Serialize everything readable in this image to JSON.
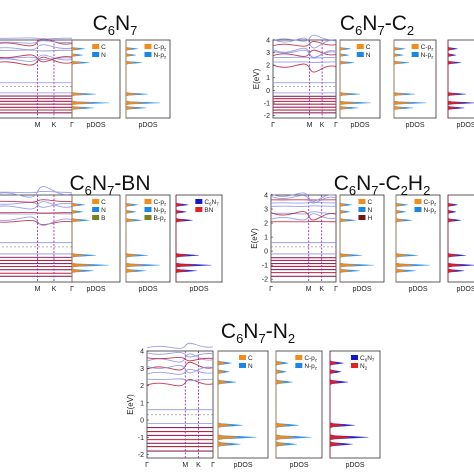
{
  "colors": {
    "band_valence": "#c0233e",
    "band_other": "#8f93e6",
    "band_flat": "#8d2a63",
    "kline": "#8a1fa8",
    "c_orange": "#f28c1c",
    "n_blue": "#1c86e6",
    "b_olive": "#77821e",
    "h_dark": "#7a1010",
    "total_navy": "#1414c8",
    "red": "#e62020"
  },
  "common": {
    "xticks": [
      "Γ",
      "M",
      "K",
      "Γ"
    ],
    "pdos_label": "pDOS",
    "ylabel": "E(eV)",
    "yticks": [
      "4",
      "3",
      "2",
      "1",
      "0",
      "-1",
      "-2"
    ]
  },
  "panels": [
    {
      "key": "c6n7",
      "title_parts": [
        {
          "t": "C",
          "sub": false
        },
        {
          "t": "6",
          "sub": true
        },
        {
          "t": "N",
          "sub": false
        },
        {
          "t": "7",
          "sub": true
        }
      ],
      "legends": [
        [
          {
            "label": "C",
            "color": "c_orange"
          },
          {
            "label": "N",
            "color": "n_blue"
          }
        ],
        [
          {
            "label": "C-p",
            "sub": "z",
            "color": "c_orange"
          },
          {
            "label": "N-p",
            "sub": "z",
            "color": "n_blue"
          }
        ]
      ]
    },
    {
      "key": "c6n7c2",
      "title_parts": [
        {
          "t": "C",
          "sub": false
        },
        {
          "t": "6",
          "sub": true
        },
        {
          "t": "N",
          "sub": false
        },
        {
          "t": "7",
          "sub": true
        },
        {
          "t": "-C",
          "sub": false
        },
        {
          "t": "2",
          "sub": true
        }
      ],
      "legends": [
        [
          {
            "label": "C",
            "color": "c_orange"
          },
          {
            "label": "N",
            "color": "n_blue"
          }
        ],
        [
          {
            "label": "C-p",
            "sub": "z",
            "color": "c_orange"
          },
          {
            "label": "N-p",
            "sub": "z",
            "color": "n_blue"
          }
        ]
      ]
    },
    {
      "key": "c6n7bn",
      "title_parts": [
        {
          "t": "C",
          "sub": false
        },
        {
          "t": "6",
          "sub": true
        },
        {
          "t": "N",
          "sub": false
        },
        {
          "t": "7",
          "sub": true
        },
        {
          "t": "-BN",
          "sub": false
        }
      ],
      "legends": [
        [
          {
            "label": "C",
            "color": "c_orange"
          },
          {
            "label": "N",
            "color": "n_blue"
          },
          {
            "label": "B",
            "color": "b_olive"
          }
        ],
        [
          {
            "label": "C-p",
            "sub": "z",
            "color": "c_orange"
          },
          {
            "label": "N-p",
            "sub": "z",
            "color": "n_blue"
          },
          {
            "label": "B-p",
            "sub": "z",
            "color": "b_olive"
          }
        ],
        [
          {
            "label": "C",
            "sub": "6",
            "label2": "N",
            "sub2": "7",
            "color": "total_navy"
          },
          {
            "label": "BN",
            "color": "red"
          }
        ]
      ]
    },
    {
      "key": "c6n7c2h2",
      "title_parts": [
        {
          "t": "C",
          "sub": false
        },
        {
          "t": "6",
          "sub": true
        },
        {
          "t": "N",
          "sub": false
        },
        {
          "t": "7",
          "sub": true
        },
        {
          "t": "-C",
          "sub": false
        },
        {
          "t": "2",
          "sub": true
        },
        {
          "t": "H",
          "sub": false
        },
        {
          "t": "2",
          "sub": true
        }
      ],
      "legends": [
        [
          {
            "label": "C",
            "color": "c_orange"
          },
          {
            "label": "N",
            "color": "n_blue"
          },
          {
            "label": "H",
            "color": "h_dark"
          }
        ],
        [
          {
            "label": "C-p",
            "sub": "z",
            "color": "c_orange"
          },
          {
            "label": "N-p",
            "sub": "z",
            "color": "n_blue"
          }
        ]
      ]
    },
    {
      "key": "c6n7n2",
      "title_parts": [
        {
          "t": "C",
          "sub": false
        },
        {
          "t": "6",
          "sub": true
        },
        {
          "t": "N",
          "sub": false
        },
        {
          "t": "7",
          "sub": true
        },
        {
          "t": "-N",
          "sub": false
        },
        {
          "t": "2",
          "sub": true
        }
      ],
      "legends": [
        [
          {
            "label": "C",
            "color": "c_orange"
          },
          {
            "label": "N",
            "color": "n_blue"
          }
        ],
        [
          {
            "label": "C-p",
            "sub": "z",
            "color": "c_orange"
          },
          {
            "label": "N-p",
            "sub": "z",
            "color": "n_blue"
          }
        ],
        [
          {
            "label": "C",
            "sub": "6",
            "label2": "N",
            "sub2": "7",
            "color": "total_navy"
          },
          {
            "label": "N",
            "sub": "2",
            "color": "red"
          }
        ]
      ]
    }
  ]
}
